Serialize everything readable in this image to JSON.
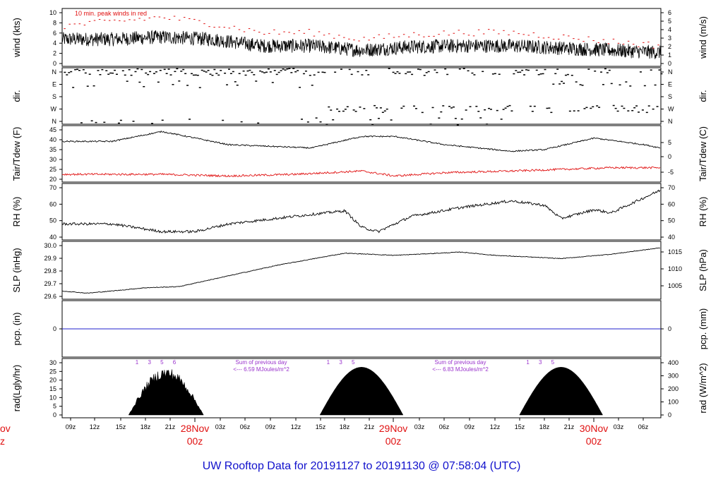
{
  "title": "UW Rooftop Data for 20191127  to  20191130 @ 07:58:04  (UTC)",
  "colors": {
    "title": "#1111cc",
    "peak": "#e01010",
    "dew": "#e01010",
    "pcp": "#2222cc",
    "rad_note": "#9932cc",
    "date": "#e01010",
    "line": "#000000"
  },
  "x_ticks": [
    "09z",
    "12z",
    "15z",
    "18z",
    "21z",
    "03z",
    "06z",
    "09z",
    "12z",
    "15z",
    "18z",
    "21z",
    "03z",
    "06z",
    "09z",
    "12z",
    "15z",
    "18z",
    "21z",
    "03z",
    "06z"
  ],
  "date_labels": [
    {
      "day": "28Nov",
      "time": "00z"
    },
    {
      "day": "29Nov",
      "time": "00z"
    },
    {
      "day": "30Nov",
      "time": "00z"
    }
  ],
  "left_edge_label": {
    "day": "ov",
    "time": "z"
  },
  "panels": {
    "wind": {
      "ylabel_left": "wind (kts)",
      "ylabel_right": "wind (m/s)",
      "left_ticks": [
        "0",
        "2",
        "4",
        "6",
        "8",
        "10"
      ],
      "right_ticks": [
        "0",
        "1",
        "2",
        "3",
        "4",
        "5",
        "6"
      ],
      "note": "10 min. peak winds in red"
    },
    "dir": {
      "ylabel_left": "dir.",
      "ylabel_right": "dir.",
      "left_ticks": [
        "N",
        "W",
        "S",
        "E",
        "N"
      ],
      "right_ticks": [
        "N",
        "W",
        "S",
        "E",
        "N"
      ]
    },
    "temp": {
      "ylabel_left": "Tair/Tdew (F)",
      "ylabel_right": "Tair/Tdew (C)",
      "left_ticks": [
        "20",
        "25",
        "30",
        "35",
        "40",
        "45"
      ],
      "right_ticks": [
        "-5",
        "0",
        "5"
      ]
    },
    "rh": {
      "ylabel_left": "RH (%)",
      "ylabel_right": "RH (%)",
      "left_ticks": [
        "40",
        "50",
        "60",
        "70"
      ],
      "right_ticks": [
        "40",
        "50",
        "60",
        "70"
      ]
    },
    "slp": {
      "ylabel_left": "SLP (inHg)",
      "ylabel_right": "SLP (hPa)",
      "left_ticks": [
        "29.6",
        "29.7",
        "29.8",
        "29.9",
        "30.0"
      ],
      "right_ticks": [
        "1005",
        "1010",
        "1015"
      ]
    },
    "pcp": {
      "ylabel_left": "pcp. (in)",
      "ylabel_right": "pcp. (mm)",
      "left_ticks": [
        "0"
      ],
      "right_ticks": [
        "0"
      ]
    },
    "rad": {
      "ylabel_left": "rad(Lgly/hr)",
      "ylabel_right": "rad (W/m^2)",
      "left_ticks": [
        "0",
        "5",
        "10",
        "15",
        "20",
        "25",
        "30"
      ],
      "right_ticks": [
        "0",
        "100",
        "200",
        "300",
        "400"
      ],
      "notes": [
        {
          "line1": "Sum of previous day",
          "line2": "<--- 6.59 MJoules/m^2"
        },
        {
          "line1": "Sum of previous day",
          "line2": "<--- 6.83 MJoules/m^2"
        }
      ],
      "hour_marks": [
        [
          "1",
          "3",
          "5",
          "6"
        ],
        [
          "1",
          "3",
          "5"
        ],
        [
          "1",
          "3",
          "5"
        ]
      ]
    }
  },
  "chart_data": {
    "type": "line",
    "x_axis": "hours since 2019-11-27 07:58 UTC",
    "xlim": [
      0,
      72
    ],
    "series": {
      "wind_kts": {
        "x": [
          0,
          6,
          12,
          18,
          24,
          30,
          36,
          42,
          48,
          54,
          60,
          66,
          72
        ],
        "y": [
          5.5,
          5.5,
          6,
          5.5,
          4,
          4,
          3,
          3.8,
          4,
          4,
          3.5,
          3,
          2.5
        ],
        "ylim": [
          0,
          11.5
        ]
      },
      "peak_wind_kts": {
        "x": [
          0,
          6,
          12,
          18,
          24,
          30,
          36,
          42,
          48,
          54,
          60,
          66,
          72
        ],
        "y": [
          8.5,
          9.5,
          10.5,
          9,
          7,
          7,
          5.5,
          6.5,
          7,
          7,
          6,
          5,
          4
        ],
        "ylim": [
          0,
          11.5
        ]
      },
      "air_temp_f": {
        "x": [
          0,
          6,
          12,
          16,
          20,
          30,
          36,
          40,
          46,
          54,
          58,
          64,
          70,
          72
        ],
        "y": [
          41,
          41,
          47,
          43,
          39,
          37,
          44,
          44,
          39,
          35,
          36,
          43,
          39,
          37
        ],
        "ylim": [
          18,
          48
        ]
      },
      "dew_temp_f": {
        "x": [
          0,
          6,
          12,
          20,
          28,
          36,
          40,
          46,
          54,
          60,
          66,
          72
        ],
        "y": [
          21,
          21,
          21,
          20,
          21,
          23,
          20,
          22,
          23,
          24,
          25,
          25
        ],
        "ylim": [
          18,
          48
        ]
      },
      "rh_pct": {
        "x": [
          0,
          6,
          12,
          16,
          20,
          28,
          34,
          36,
          38,
          42,
          48,
          54,
          58,
          60,
          64,
          66,
          72
        ],
        "y": [
          45,
          45,
          38,
          38,
          45,
          52,
          57,
          42,
          38,
          52,
          60,
          66,
          62,
          50,
          58,
          55,
          76
        ],
        "ylim": [
          33,
          78
        ]
      },
      "slp_inhg": {
        "x": [
          0,
          3,
          6,
          10,
          14,
          20,
          26,
          34,
          40,
          48,
          52,
          60,
          66,
          72
        ],
        "y": [
          29.62,
          29.6,
          29.62,
          29.65,
          29.66,
          29.76,
          29.86,
          29.97,
          29.95,
          29.98,
          29.95,
          29.92,
          29.96,
          30.02
        ],
        "ylim": [
          29.57,
          30.04
        ]
      },
      "pcp_in": {
        "x": [
          0,
          72
        ],
        "y": [
          0,
          0
        ],
        "ylim": [
          -1,
          1
        ]
      },
      "rad_lgly_hr": {
        "days": [
          {
            "start": 8,
            "peak": 12,
            "end": 17,
            "max": 32
          },
          {
            "start": 31,
            "peak": 36,
            "end": 41,
            "max": 32
          },
          {
            "start": 55,
            "peak": 60,
            "end": 65,
            "max": 32
          }
        ],
        "ylim": [
          0,
          35
        ]
      }
    }
  }
}
